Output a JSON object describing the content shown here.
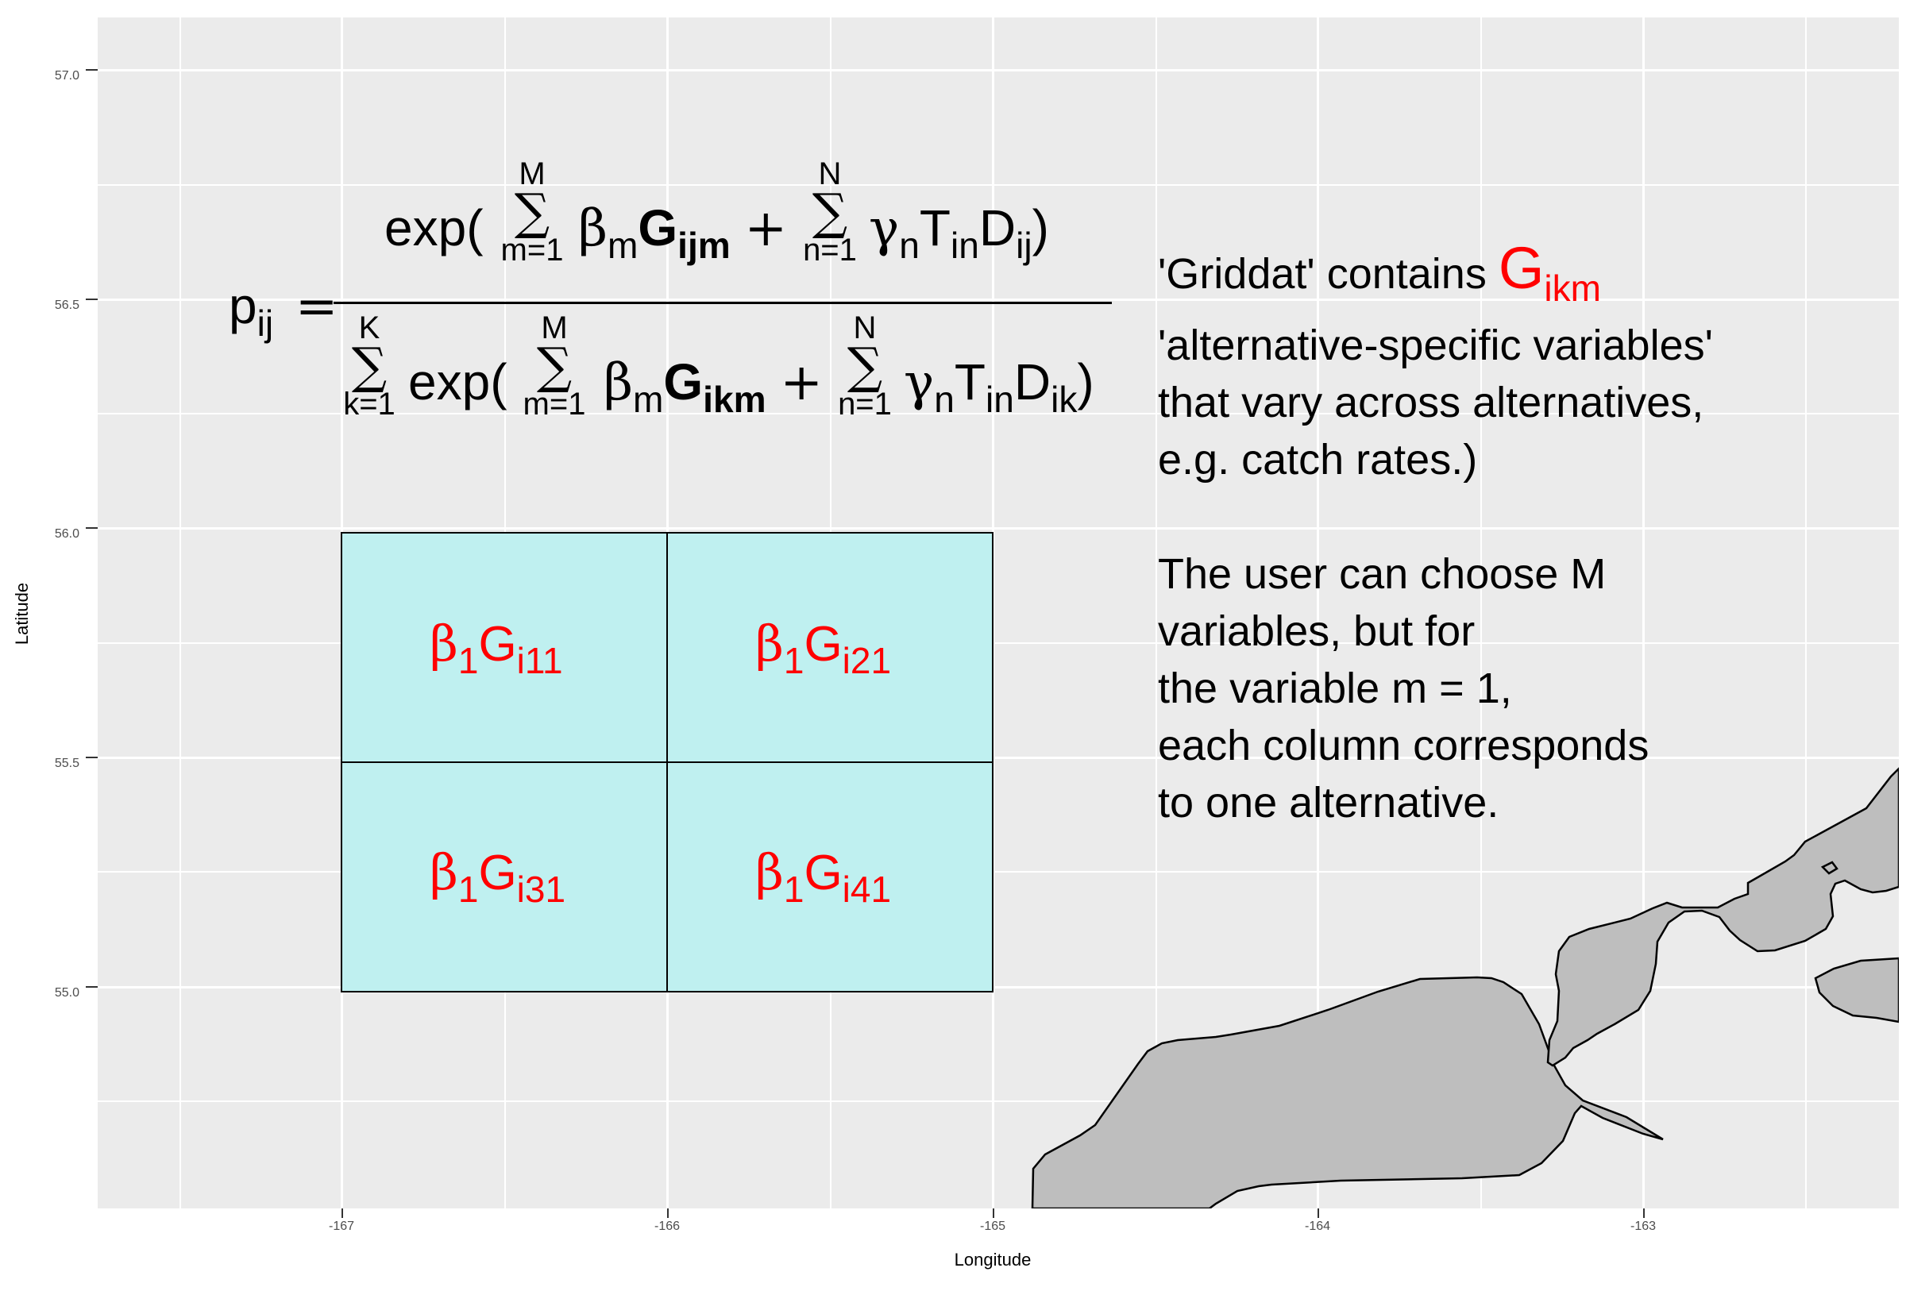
{
  "axes": {
    "x_title": "Longitude",
    "y_title": "Latitude",
    "x_ticks": [
      "-167",
      "-166",
      "-165",
      "-164",
      "-163"
    ],
    "y_ticks": [
      "55.0",
      "55.5",
      "56.0",
      "56.5",
      "57.0"
    ],
    "x_range": [
      -167.75,
      -162.5
    ],
    "y_range": [
      54.55,
      57.15
    ]
  },
  "equation": {
    "lhs": "p",
    "lhs_sub": "ij",
    "equals": "=",
    "num_exp": "exp(",
    "sum_M": "M",
    "sum_m1": "m=1",
    "beta": "β",
    "beta_sub": "m",
    "G": "G",
    "G_num_sub": "ijm",
    "plus": "+",
    "sum_N": "N",
    "sum_n1": "n=1",
    "gamma": "γ",
    "gamma_sub": "n",
    "T": "T",
    "T_sub": "in",
    "D": "D",
    "D_num_sub": "ij",
    "close": ")",
    "den_sum_K": "K",
    "den_sum_k1": "k=1",
    "den_exp": "exp(",
    "G_den_sub": "ikm",
    "D_den_sub": "ik",
    "sigma": "∑"
  },
  "note": {
    "line1_prefix": "'Griddat' contains ",
    "line1_G": "G",
    "line1_G_sub": "ikm",
    "line2": "'alternative-specific variables'",
    "line3": "that vary across alternatives,",
    "line4": "e.g. catch rates.)",
    "line5": "The user can choose M",
    "line6": "variables, but for",
    "line7": "the variable m = 1,",
    "line8": "each column corresponds",
    "line9": "to one alternative."
  },
  "grid_cells": [
    {
      "label_beta": "β",
      "label_beta_sub": "1",
      "label_G": "G",
      "label_G_sub": "i11",
      "lon": [
        -167,
        -166
      ],
      "lat": [
        55.5,
        56.0
      ]
    },
    {
      "label_beta": "β",
      "label_beta_sub": "1",
      "label_G": "G",
      "label_G_sub": "i21",
      "lon": [
        -166,
        -165
      ],
      "lat": [
        55.5,
        56.0
      ]
    },
    {
      "label_beta": "β",
      "label_beta_sub": "1",
      "label_G": "G",
      "label_G_sub": "i31",
      "lon": [
        -167,
        -166
      ],
      "lat": [
        55.0,
        55.5
      ]
    },
    {
      "label_beta": "β",
      "label_beta_sub": "1",
      "label_G": "G",
      "label_G_sub": "i41",
      "lon": [
        -166,
        -165
      ],
      "lat": [
        55.0,
        55.5
      ]
    }
  ],
  "colors": {
    "panel_bg": "#ebebeb",
    "cell_fill": "#bff0f0",
    "land_fill": "#bebebe",
    "highlight": "#ff0000"
  }
}
